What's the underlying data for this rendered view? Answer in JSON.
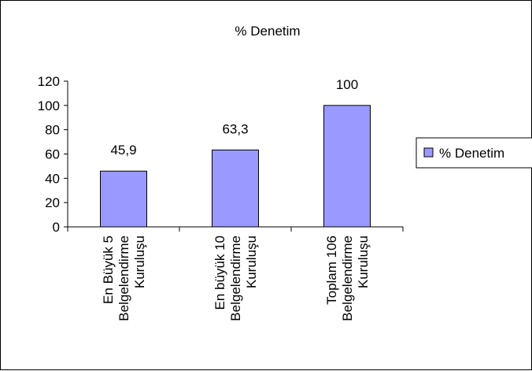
{
  "chart_data": {
    "type": "bar",
    "title": "% Denetim",
    "categories": [
      [
        "En Büyük 5",
        "Belgelendirme",
        "Kuruluşu"
      ],
      [
        "En büyük 10",
        "Belgelendirme",
        "Kuruluşu"
      ],
      [
        "Toplam 106",
        "Belgelendirme",
        "Kuruluşu"
      ]
    ],
    "series": [
      {
        "name": "% Denetim",
        "values": [
          45.9,
          63.3,
          100
        ]
      }
    ],
    "data_labels": [
      "45,9",
      "63,3",
      "100"
    ],
    "yticks": [
      "0",
      "20",
      "40",
      "60",
      "80",
      "100",
      "120"
    ],
    "ylim": [
      0,
      120
    ],
    "xlabel": "",
    "ylabel": "",
    "grid": false,
    "legend": "right",
    "bar_color": "#9999ff",
    "bar_border": "#000000"
  }
}
